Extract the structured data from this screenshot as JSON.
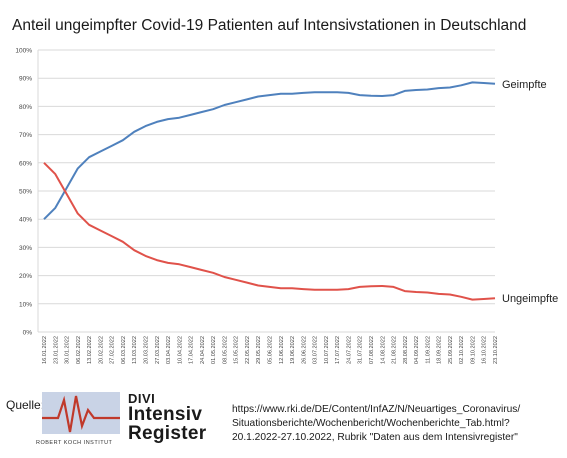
{
  "chart_data": {
    "type": "line",
    "title": "Anteil ungeimpfter Covid-19 Patienten auf Intensivstationen in Deutschland",
    "ylim": [
      0,
      100
    ],
    "yticks": [
      "0%",
      "10%",
      "20%",
      "30%",
      "40%",
      "50%",
      "60%",
      "70%",
      "80%",
      "90%",
      "100%"
    ],
    "grid": true,
    "legend": "inline-right",
    "x": [
      "16.01.2022",
      "23.01.2022",
      "30.01.2022",
      "06.02.2022",
      "13.02.2022",
      "20.02.2022",
      "27.02.2022",
      "06.03.2022",
      "13.03.2022",
      "20.03.2022",
      "27.03.2022",
      "03.04.2022",
      "10.04.2022",
      "17.04.2022",
      "24.04.2022",
      "01.05.2022",
      "08.05.2022",
      "15.05.2022",
      "22.05.2022",
      "29.05.2022",
      "05.06.2022",
      "12.06.2022",
      "19.06.2022",
      "26.06.2022",
      "03.07.2022",
      "10.07.2022",
      "17.07.2022",
      "24.07.2022",
      "31.07.2022",
      "07.08.2022",
      "14.08.2022",
      "21.08.2022",
      "28.08.2022",
      "04.09.2022",
      "11.09.2022",
      "18.09.2022",
      "25.09.2022",
      "02.10.2022",
      "09.10.2022",
      "16.10.2022",
      "23.10.2022"
    ],
    "series": [
      {
        "name": "Geimpfte",
        "color": "#4f81bd",
        "values": [
          40,
          44,
          51,
          58,
          62,
          64,
          66,
          68,
          71,
          73,
          74.5,
          75.5,
          76,
          77,
          78,
          79,
          80.5,
          81.5,
          82.5,
          83.5,
          84,
          84.5,
          84.5,
          84.8,
          85,
          85,
          85,
          84.8,
          84,
          83.8,
          83.7,
          84,
          85.5,
          85.8,
          86,
          86.5,
          86.7,
          87.5,
          88.5,
          88.3,
          88
        ]
      },
      {
        "name": "Ungeimpfte",
        "color": "#e0524a",
        "values": [
          60,
          56,
          49,
          42,
          38,
          36,
          34,
          32,
          29,
          27,
          25.5,
          24.5,
          24,
          23,
          22,
          21,
          19.5,
          18.5,
          17.5,
          16.5,
          16,
          15.5,
          15.5,
          15.2,
          15,
          15,
          15,
          15.2,
          16,
          16.2,
          16.3,
          16,
          14.5,
          14.2,
          14,
          13.5,
          13.3,
          12.5,
          11.5,
          11.7,
          12
        ]
      }
    ]
  },
  "footer": {
    "source_label": "Quelle:",
    "divi_line1": "DIVI",
    "divi_line2": "Intensiv",
    "divi_line3": "Register",
    "rki_name": "ROBERT KOCH INSTITUT",
    "source_lines": [
      "https://www.rki.de/DE/Content/InfAZ/N/Neuartiges_Coronavirus/",
      "Situationsberichte/Wochenbericht/Wochenberichte_Tab.html?",
      "20.1.2022-27.10.2022, Rubrik \"Daten aus dem Intensivregister\""
    ]
  }
}
